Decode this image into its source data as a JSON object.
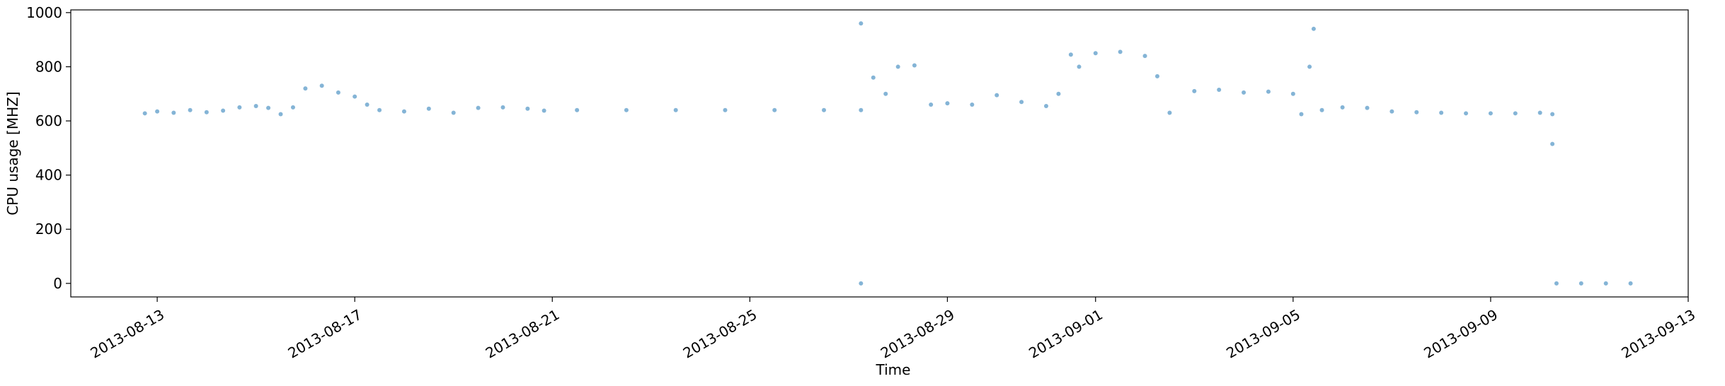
{
  "chart_data": {
    "type": "scatter",
    "title": "",
    "xlabel": "Time",
    "ylabel": "CPU usage [MHZ]",
    "x_type": "date",
    "xlim": [
      "2013-08-11T06:00",
      "2013-09-13T00:00"
    ],
    "ylim": [
      -50,
      1010
    ],
    "x_ticks": [
      "2013-08-13",
      "2013-08-17",
      "2013-08-21",
      "2013-08-25",
      "2013-08-29",
      "2013-09-01",
      "2013-09-05",
      "2013-09-09",
      "2013-09-13"
    ],
    "y_ticks": [
      0,
      200,
      400,
      600,
      800,
      1000
    ],
    "grid": false,
    "legend": "none",
    "series": [
      {
        "color": "#1f77b4",
        "points": [
          [
            "2013-08-12T18:00",
            628
          ],
          [
            "2013-08-13T00:00",
            635
          ],
          [
            "2013-08-13T08:00",
            630
          ],
          [
            "2013-08-13T16:00",
            640
          ],
          [
            "2013-08-14T00:00",
            632
          ],
          [
            "2013-08-14T08:00",
            638
          ],
          [
            "2013-08-14T16:00",
            650
          ],
          [
            "2013-08-15T00:00",
            655
          ],
          [
            "2013-08-15T06:00",
            648
          ],
          [
            "2013-08-15T12:00",
            625
          ],
          [
            "2013-08-15T18:00",
            650
          ],
          [
            "2013-08-16T00:00",
            720
          ],
          [
            "2013-08-16T08:00",
            730
          ],
          [
            "2013-08-16T16:00",
            705
          ],
          [
            "2013-08-17T00:00",
            690
          ],
          [
            "2013-08-17T06:00",
            660
          ],
          [
            "2013-08-17T12:00",
            640
          ],
          [
            "2013-08-18T00:00",
            635
          ],
          [
            "2013-08-18T12:00",
            645
          ],
          [
            "2013-08-19T00:00",
            630
          ],
          [
            "2013-08-19T12:00",
            648
          ],
          [
            "2013-08-20T00:00",
            650
          ],
          [
            "2013-08-20T12:00",
            645
          ],
          [
            "2013-08-20T20:00",
            638
          ],
          [
            "2013-08-21T12:00",
            640
          ],
          [
            "2013-08-22T12:00",
            640
          ],
          [
            "2013-08-23T12:00",
            640
          ],
          [
            "2013-08-24T12:00",
            640
          ],
          [
            "2013-08-25T12:00",
            640
          ],
          [
            "2013-08-26T12:00",
            640
          ],
          [
            "2013-08-27T06:00",
            640
          ],
          [
            "2013-08-27T06:00",
            0
          ],
          [
            "2013-08-27T06:00",
            960
          ],
          [
            "2013-08-27T12:00",
            760
          ],
          [
            "2013-08-27T18:00",
            700
          ],
          [
            "2013-08-28T00:00",
            800
          ],
          [
            "2013-08-28T08:00",
            805
          ],
          [
            "2013-08-28T16:00",
            660
          ],
          [
            "2013-08-29T00:00",
            665
          ],
          [
            "2013-08-29T12:00",
            660
          ],
          [
            "2013-08-30T00:00",
            695
          ],
          [
            "2013-08-30T12:00",
            670
          ],
          [
            "2013-08-31T00:00",
            655
          ],
          [
            "2013-08-31T06:00",
            700
          ],
          [
            "2013-08-31T12:00",
            845
          ],
          [
            "2013-08-31T16:00",
            800
          ],
          [
            "2013-09-01T00:00",
            850
          ],
          [
            "2013-09-01T12:00",
            855
          ],
          [
            "2013-09-02T00:00",
            840
          ],
          [
            "2013-09-02T06:00",
            765
          ],
          [
            "2013-09-02T12:00",
            630
          ],
          [
            "2013-09-03T00:00",
            710
          ],
          [
            "2013-09-03T12:00",
            715
          ],
          [
            "2013-09-04T00:00",
            705
          ],
          [
            "2013-09-04T12:00",
            708
          ],
          [
            "2013-09-05T00:00",
            700
          ],
          [
            "2013-09-05T04:00",
            625
          ],
          [
            "2013-09-05T08:00",
            800
          ],
          [
            "2013-09-05T10:00",
            940
          ],
          [
            "2013-09-05T14:00",
            640
          ],
          [
            "2013-09-06T00:00",
            650
          ],
          [
            "2013-09-06T12:00",
            648
          ],
          [
            "2013-09-07T00:00",
            635
          ],
          [
            "2013-09-07T12:00",
            632
          ],
          [
            "2013-09-08T00:00",
            630
          ],
          [
            "2013-09-08T12:00",
            628
          ],
          [
            "2013-09-09T00:00",
            628
          ],
          [
            "2013-09-09T12:00",
            628
          ],
          [
            "2013-09-10T00:00",
            630
          ],
          [
            "2013-09-10T06:00",
            625
          ],
          [
            "2013-09-10T06:00",
            515
          ],
          [
            "2013-09-10T08:00",
            0
          ],
          [
            "2013-09-10T20:00",
            0
          ],
          [
            "2013-09-11T08:00",
            0
          ],
          [
            "2013-09-11T20:00",
            0
          ]
        ]
      }
    ]
  }
}
